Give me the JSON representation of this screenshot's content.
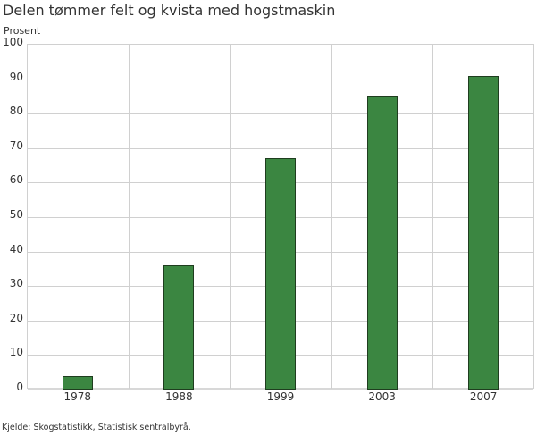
{
  "title": "Delen tømmer felt og kvista med hogstmaskin",
  "ylabel": "Prosent",
  "source": "Kjelde: Skogstatistikk, Statistisk sentralbyrå.",
  "colors": {
    "bar": "#3b8641",
    "bar_border": "#1f3d1f",
    "grid": "#d0d0d0"
  },
  "chart_data": {
    "type": "bar",
    "title": "Delen tømmer felt og kvista med hogstmaskin",
    "xlabel": "",
    "ylabel": "Prosent",
    "categories": [
      "1978",
      "1988",
      "1999",
      "2003",
      "2007"
    ],
    "values": [
      4,
      36,
      67,
      85,
      91
    ],
    "ylim": [
      0,
      100
    ],
    "yticks": [
      "0",
      "10",
      "20",
      "30",
      "40",
      "50",
      "60",
      "70",
      "80",
      "90",
      "100"
    ],
    "grid": true,
    "legend": null
  }
}
